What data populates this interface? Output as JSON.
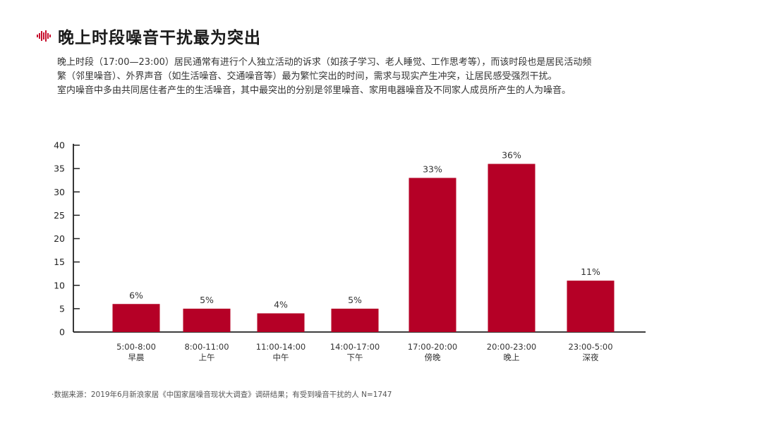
{
  "title": "晚上时段噪音干扰最为突出",
  "description": [
    "晚上时段（17:00—23:00）居民通常有进行个人独立活动的诉求（如孩子学习、老人睡觉、工作思考等），而该时段也是居民活动频",
    "繁（邻里噪音）、外界声音（如生活噪音、交通噪音等）最为繁忙突出的时间，需求与现实产生冲突，让居民感受强烈干扰。",
    "室内噪音中多由共同居住者产生的生活噪音，其中最突出的分别是邻里噪音、家用电器噪音及不同家人成员所产生的人为噪音。"
  ],
  "source": "·数据来源：2019年6月新浪家居《中国家居噪音现状大调查》调研结果；有受到噪音干扰的人 N=1747",
  "colors": {
    "bar": "#b50026",
    "axis": "#222222",
    "accent": "#c8102e"
  },
  "chart_data": {
    "type": "bar",
    "categories": [
      "5:00-8:00",
      "8:00-11:00",
      "11:00-14:00",
      "14:00-17:00",
      "17:00-20:00",
      "20:00-23:00",
      "23:00-5:00"
    ],
    "sublabels": [
      "早晨",
      "上午",
      "中午",
      "下午",
      "傍晚",
      "晚上",
      "深夜"
    ],
    "values": [
      6,
      5,
      4,
      5,
      33,
      36,
      11
    ],
    "data_labels": [
      "6%",
      "5%",
      "4%",
      "5%",
      "33%",
      "36%",
      "11%"
    ],
    "yticks": [
      "0",
      "5",
      "10",
      "15",
      "20",
      "25",
      "30",
      "35",
      "40"
    ],
    "ylim": [
      0,
      40
    ],
    "title": "",
    "xlabel": "",
    "ylabel": "",
    "legend": "none",
    "grid": false
  }
}
